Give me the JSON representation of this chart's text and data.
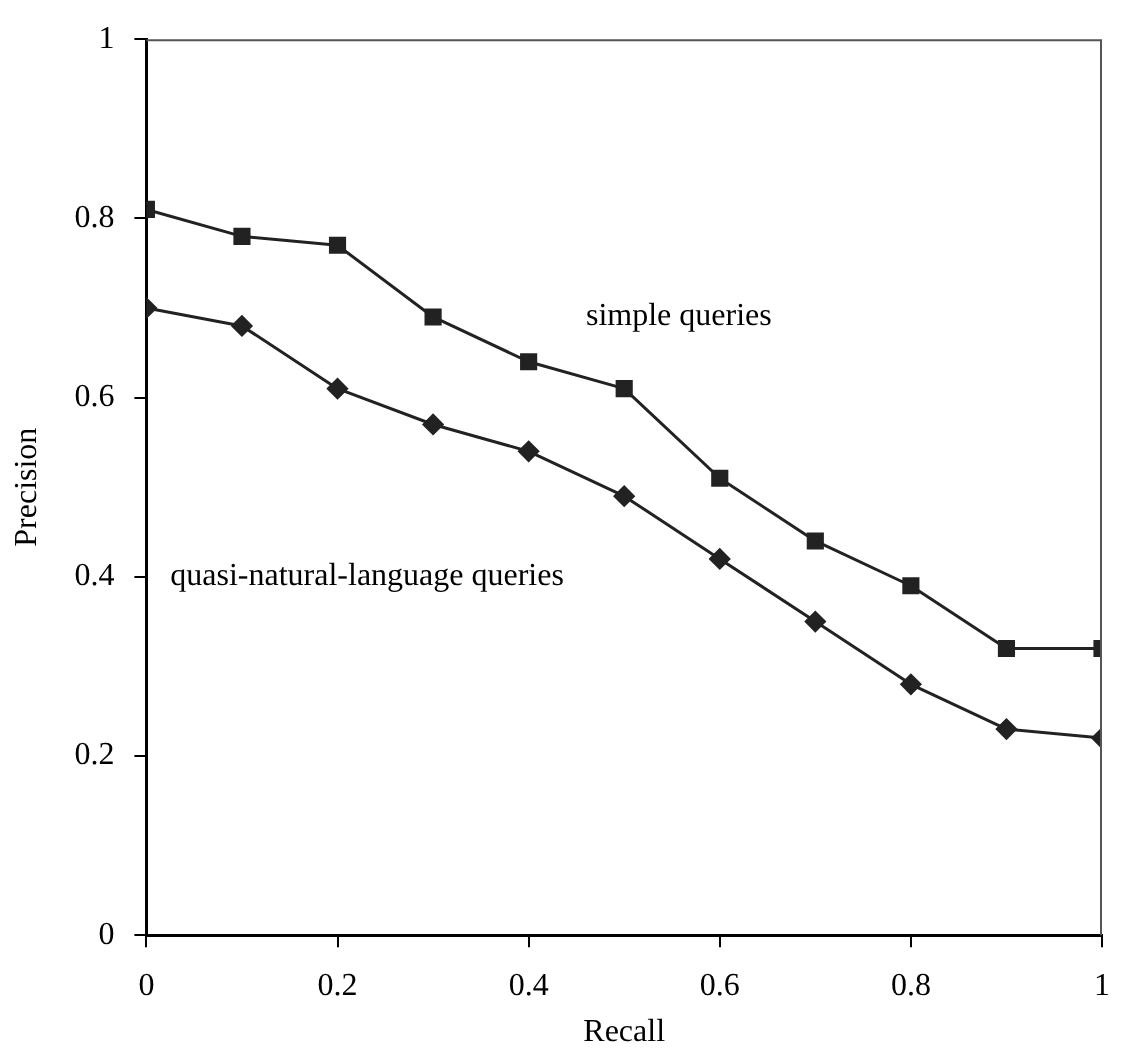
{
  "chart_data": {
    "type": "line",
    "xlabel": "Recall",
    "ylabel": "Precision",
    "x": [
      0,
      0.1,
      0.2,
      0.3,
      0.4,
      0.5,
      0.6,
      0.7,
      0.8,
      0.9,
      1
    ],
    "xlim": [
      0,
      1
    ],
    "xticks": [
      0,
      0.2,
      0.4,
      0.6,
      0.8,
      1
    ],
    "ylim": [
      0,
      1
    ],
    "yticks": [
      0,
      0.2,
      0.4,
      0.6,
      0.8,
      1
    ],
    "grid": false,
    "legend": false,
    "series": [
      {
        "name": "simple queries",
        "color": "#222222",
        "marker": "square",
        "values": [
          0.81,
          0.78,
          0.77,
          0.69,
          0.64,
          0.61,
          0.51,
          0.44,
          0.39,
          0.32,
          0.32
        ]
      },
      {
        "name": "quasi-natural-language queries",
        "color": "#222222",
        "marker": "diamond",
        "values": [
          0.7,
          0.68,
          0.61,
          0.57,
          0.54,
          0.49,
          0.42,
          0.35,
          0.28,
          0.23,
          0.22
        ]
      }
    ]
  }
}
